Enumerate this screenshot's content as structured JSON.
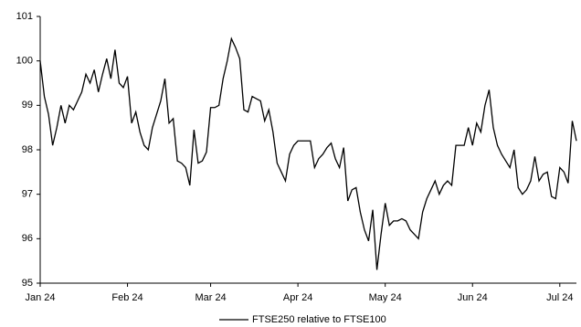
{
  "chart_data": {
    "type": "line",
    "categories": [
      "Jan 24",
      null,
      null,
      null,
      null,
      null,
      null,
      null,
      null,
      null,
      null,
      null,
      null,
      null,
      null,
      null,
      null,
      null,
      null,
      null,
      null,
      "Feb 24",
      null,
      null,
      null,
      null,
      null,
      null,
      null,
      null,
      null,
      null,
      null,
      null,
      null,
      null,
      null,
      null,
      null,
      null,
      null,
      "Mar 24",
      null,
      null,
      null,
      null,
      null,
      null,
      null,
      null,
      null,
      null,
      null,
      null,
      null,
      null,
      null,
      null,
      null,
      null,
      null,
      null,
      "Apr 24",
      null,
      null,
      null,
      null,
      null,
      null,
      null,
      null,
      null,
      null,
      null,
      null,
      null,
      null,
      null,
      null,
      null,
      null,
      null,
      null,
      "May 24",
      null,
      null,
      null,
      null,
      null,
      null,
      null,
      null,
      null,
      null,
      null,
      null,
      null,
      null,
      null,
      null,
      null,
      null,
      null,
      null,
      "Jun 24",
      null,
      null,
      null,
      null,
      null,
      null,
      null,
      null,
      null,
      null,
      null,
      null,
      null,
      null,
      null,
      null,
      null,
      null,
      null,
      null,
      "Jul 24",
      null,
      null,
      null,
      null
    ],
    "series": [
      {
        "name": "FTSE250 relative to FTSE100",
        "color": "#000000",
        "values": [
          100.0,
          99.2,
          98.8,
          98.1,
          98.5,
          99.0,
          98.6,
          99.0,
          98.9,
          99.1,
          99.3,
          99.7,
          99.5,
          99.8,
          99.3,
          99.7,
          100.05,
          99.6,
          100.25,
          99.5,
          99.4,
          99.65,
          98.6,
          98.85,
          98.4,
          98.1,
          98.0,
          98.5,
          98.8,
          99.1,
          99.6,
          98.6,
          98.7,
          97.75,
          97.7,
          97.6,
          97.2,
          98.45,
          97.7,
          97.75,
          97.95,
          98.95,
          98.95,
          99.0,
          99.6,
          100.0,
          100.5,
          100.3,
          100.05,
          98.9,
          98.85,
          99.2,
          99.15,
          99.1,
          98.65,
          98.9,
          98.4,
          97.7,
          97.5,
          97.3,
          97.9,
          98.1,
          98.2,
          98.2,
          98.2,
          98.2,
          97.6,
          97.8,
          97.9,
          98.05,
          98.15,
          97.8,
          97.6,
          98.05,
          96.85,
          97.1,
          97.15,
          96.6,
          96.2,
          95.95,
          96.65,
          95.3,
          96.1,
          96.8,
          96.3,
          96.4,
          96.4,
          96.45,
          96.4,
          96.2,
          96.1,
          96.0,
          96.6,
          96.9,
          97.1,
          97.3,
          97.0,
          97.2,
          97.3,
          97.2,
          98.1,
          98.1,
          98.1,
          98.5,
          98.1,
          98.6,
          98.4,
          99.0,
          99.35,
          98.5,
          98.1,
          97.9,
          97.75,
          97.6,
          98.0,
          97.15,
          97.0,
          97.1,
          97.3,
          97.85,
          97.3,
          97.45,
          97.5,
          96.95,
          96.9,
          97.6,
          97.5,
          97.25,
          98.65,
          98.2
        ]
      }
    ],
    "ylim": [
      95,
      101
    ],
    "yticks": [
      95,
      96,
      97,
      98,
      99,
      100,
      101
    ],
    "grid": false,
    "legend": "bottom"
  }
}
